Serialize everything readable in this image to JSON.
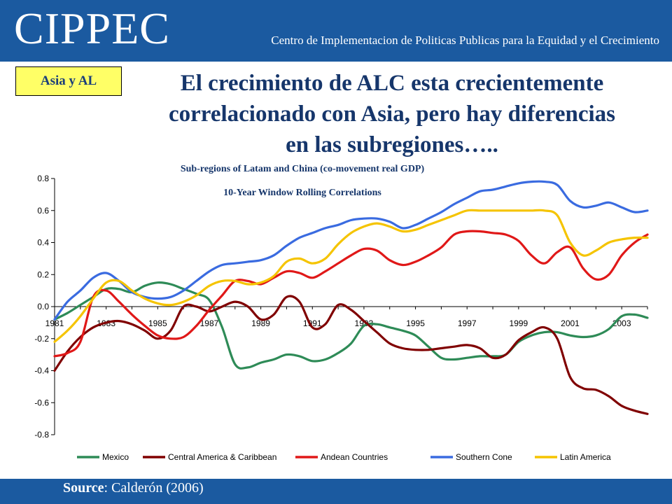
{
  "header": {
    "logo": "CIPPEC",
    "subtitle": "Centro de Implementacion de Politicas Publicas para la Equidad y el Crecimiento"
  },
  "tag": "Asia y AL",
  "title": {
    "line1": "El crecimiento de ALC esta crecientemente",
    "line2": "correlacionado con Asia, pero hay diferencias",
    "line3": "en las subregiones….."
  },
  "footer": {
    "source_label": "Source",
    "source_text": ": Calderón (2006)"
  },
  "chart_data": {
    "type": "line",
    "title": "Sub-regions of Latam and China (co-movement real GDP)",
    "subtitle": "10-Year Window Rolling Correlations",
    "x_tick_labels": [
      "1981",
      "1983",
      "1985",
      "1987",
      "1989",
      "1991",
      "1993",
      "1995",
      "1997",
      "1999",
      "2001",
      "2003"
    ],
    "y_tick_labels": [
      "0.8",
      "0.6",
      "0.4",
      "0.2",
      "0.0",
      "-0.2",
      "-0.4",
      "-0.6",
      "-0.8"
    ],
    "xlim": [
      1981,
      2004
    ],
    "ylim": [
      -0.8,
      0.8
    ],
    "legend_position": "bottom",
    "x": [
      1981,
      1981.5,
      1982,
      1982.5,
      1983,
      1983.5,
      1984,
      1984.5,
      1985,
      1985.5,
      1986,
      1986.5,
      1987,
      1987.5,
      1988,
      1988.5,
      1989,
      1989.5,
      1990,
      1990.5,
      1991,
      1991.5,
      1992,
      1992.5,
      1993,
      1993.5,
      1994,
      1994.5,
      1995,
      1995.5,
      1996,
      1996.5,
      1997,
      1997.5,
      1998,
      1998.5,
      1999,
      1999.5,
      2000,
      2000.5,
      2001,
      2001.5,
      2002,
      2002.5,
      2003,
      2003.5,
      2004
    ],
    "series": [
      {
        "name": "Mexico",
        "color": "#2e8b57",
        "values": [
          -0.08,
          -0.04,
          0.01,
          0.06,
          0.11,
          0.11,
          0.09,
          0.13,
          0.15,
          0.14,
          0.11,
          0.08,
          0.04,
          -0.13,
          -0.36,
          -0.38,
          -0.35,
          -0.33,
          -0.3,
          -0.31,
          -0.34,
          -0.33,
          -0.29,
          -0.23,
          -0.12,
          -0.11,
          -0.13,
          -0.15,
          -0.18,
          -0.25,
          -0.32,
          -0.33,
          -0.32,
          -0.31,
          -0.31,
          -0.3,
          -0.22,
          -0.18,
          -0.16,
          -0.16,
          -0.18,
          -0.19,
          -0.18,
          -0.14,
          -0.06,
          -0.05,
          -0.07
        ]
      },
      {
        "name": "Central America & Caribbean",
        "color": "#800000",
        "values": [
          -0.4,
          -0.28,
          -0.19,
          -0.13,
          -0.1,
          -0.09,
          -0.11,
          -0.15,
          -0.2,
          -0.15,
          0.0,
          0.0,
          -0.03,
          0.0,
          0.03,
          0.0,
          -0.08,
          -0.05,
          0.06,
          0.03,
          -0.13,
          -0.11,
          0.01,
          -0.02,
          -0.09,
          -0.16,
          -0.23,
          -0.26,
          -0.27,
          -0.27,
          -0.26,
          -0.25,
          -0.24,
          -0.26,
          -0.32,
          -0.3,
          -0.21,
          -0.16,
          -0.13,
          -0.2,
          -0.44,
          -0.51,
          -0.52,
          -0.56,
          -0.62,
          -0.65,
          -0.67
        ]
      },
      {
        "name": "Andean Countries",
        "color": "#e01818",
        "values": [
          -0.31,
          -0.29,
          -0.22,
          0.06,
          0.1,
          0.03,
          -0.05,
          -0.12,
          -0.18,
          -0.2,
          -0.19,
          -0.12,
          -0.02,
          0.07,
          0.16,
          0.16,
          0.14,
          0.18,
          0.22,
          0.21,
          0.18,
          0.22,
          0.27,
          0.32,
          0.36,
          0.35,
          0.29,
          0.26,
          0.28,
          0.32,
          0.37,
          0.45,
          0.47,
          0.47,
          0.46,
          0.45,
          0.41,
          0.32,
          0.27,
          0.34,
          0.37,
          0.24,
          0.17,
          0.2,
          0.32,
          0.4,
          0.45
        ]
      },
      {
        "name": "Southern Cone",
        "color": "#3a6be0",
        "values": [
          -0.08,
          0.03,
          0.1,
          0.18,
          0.21,
          0.16,
          0.09,
          0.06,
          0.05,
          0.06,
          0.1,
          0.16,
          0.22,
          0.26,
          0.27,
          0.28,
          0.29,
          0.32,
          0.38,
          0.43,
          0.46,
          0.49,
          0.51,
          0.54,
          0.55,
          0.55,
          0.53,
          0.49,
          0.51,
          0.55,
          0.59,
          0.64,
          0.68,
          0.72,
          0.73,
          0.75,
          0.77,
          0.78,
          0.78,
          0.76,
          0.66,
          0.62,
          0.63,
          0.65,
          0.62,
          0.59,
          0.6
        ]
      },
      {
        "name": "Latin America",
        "color": "#f5c400",
        "values": [
          -0.22,
          -0.15,
          -0.06,
          0.05,
          0.15,
          0.16,
          0.1,
          0.05,
          0.02,
          0.01,
          0.03,
          0.07,
          0.13,
          0.16,
          0.16,
          0.14,
          0.15,
          0.19,
          0.28,
          0.3,
          0.27,
          0.3,
          0.39,
          0.46,
          0.5,
          0.52,
          0.5,
          0.47,
          0.48,
          0.51,
          0.54,
          0.57,
          0.6,
          0.6,
          0.6,
          0.6,
          0.6,
          0.6,
          0.6,
          0.57,
          0.4,
          0.32,
          0.35,
          0.4,
          0.42,
          0.43,
          0.43
        ]
      }
    ]
  }
}
